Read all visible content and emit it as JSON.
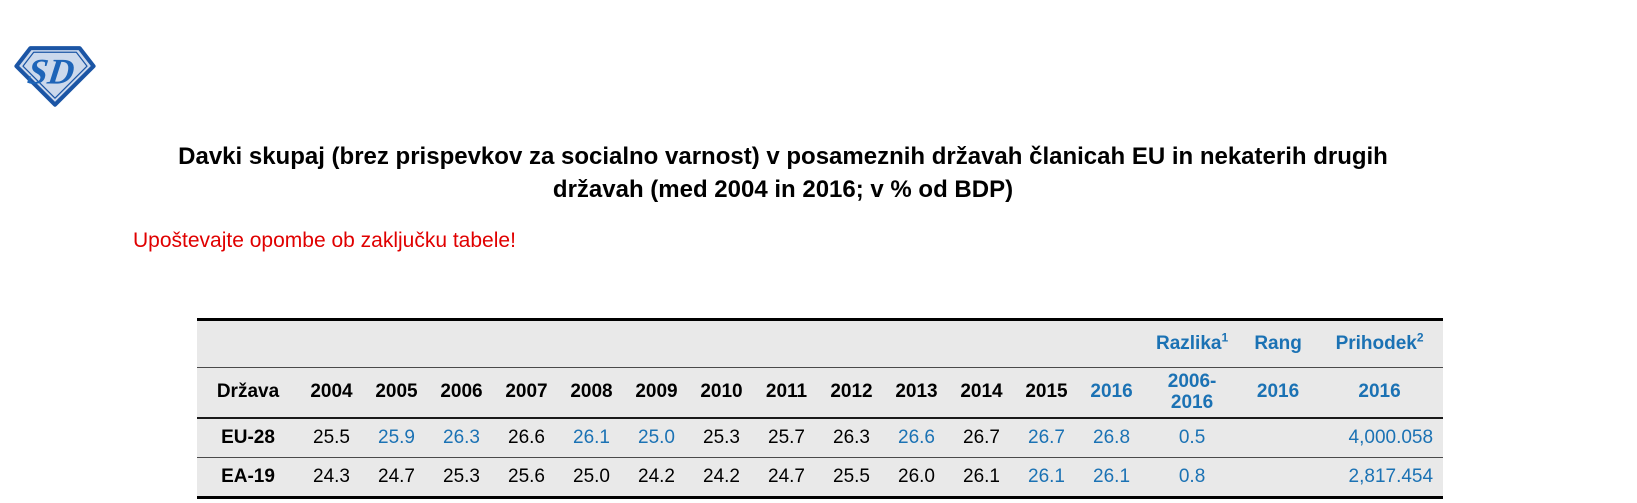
{
  "logo": {
    "initials": "SD"
  },
  "title": "Davki skupaj (brez prispevkov za socialno varnost) v posameznih državah članicah EU in nekaterih drugih državah (med 2004 in 2016; v % od BDP)",
  "notice": "Upoštevajte opombe ob zaključku tabele!",
  "colors": {
    "accent_blue": "#1b72b4",
    "notice_red": "#e00000",
    "table_background": "#e9e9e9",
    "logo_blue": "#1d64b8"
  },
  "table": {
    "group_header": {
      "razlika": {
        "label": "Razlika",
        "sup": "1"
      },
      "rang": {
        "label": "Rang",
        "sup": ""
      },
      "prihodek": {
        "label": "Prihodek",
        "sup": "2"
      }
    },
    "columns": {
      "country": "Država",
      "years": [
        "2004",
        "2005",
        "2006",
        "2007",
        "2008",
        "2009",
        "2010",
        "2011",
        "2012",
        "2013",
        "2014",
        "2015",
        "2016"
      ],
      "year_blue": [
        false,
        false,
        false,
        false,
        false,
        false,
        false,
        false,
        false,
        false,
        false,
        false,
        true
      ],
      "razlika_period": "2006-\n2016",
      "rang_year": "2016",
      "prihodek_year": "2016"
    },
    "rows": [
      {
        "country": "EU-28",
        "values": [
          "25.5",
          "25.9",
          "26.3",
          "26.6",
          "26.1",
          "25.0",
          "25.3",
          "25.7",
          "26.3",
          "26.6",
          "26.7",
          "26.7",
          "26.8"
        ],
        "value_blue": [
          false,
          true,
          true,
          false,
          true,
          true,
          false,
          false,
          false,
          true,
          false,
          true,
          true
        ],
        "razlika": "0.5",
        "rang": "",
        "prihodek": "4,000.058"
      },
      {
        "country": "EA-19",
        "values": [
          "24.3",
          "24.7",
          "25.3",
          "25.6",
          "25.0",
          "24.2",
          "24.2",
          "24.7",
          "25.5",
          "26.0",
          "26.1",
          "26.1",
          "26.1"
        ],
        "value_blue": [
          false,
          false,
          false,
          false,
          false,
          false,
          false,
          false,
          false,
          false,
          false,
          true,
          true
        ],
        "razlika": "0.8",
        "rang": "",
        "prihodek": "2,817.454"
      }
    ]
  }
}
